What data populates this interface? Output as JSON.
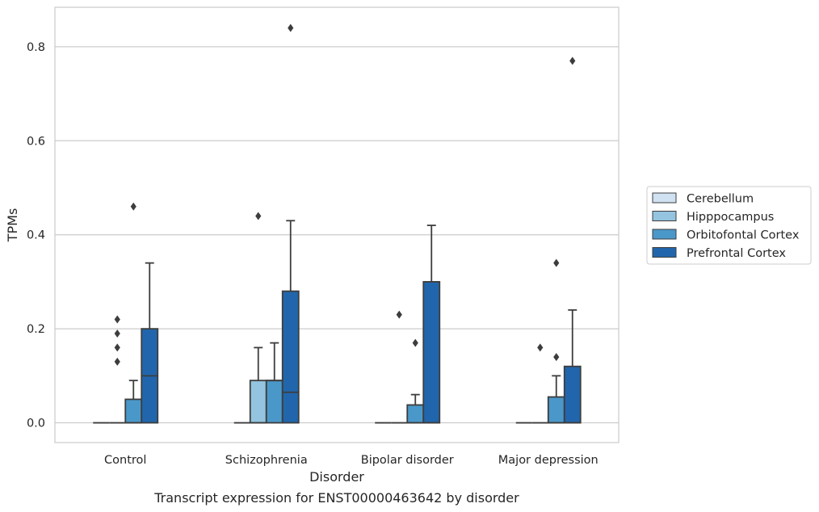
{
  "chart_data": {
    "type": "box",
    "title": "",
    "caption": "Transcript expression for ENST00000463642 by disorder",
    "xlabel": "Disorder",
    "ylabel": "TPMs",
    "categories": [
      "Control",
      "Schizophrenia",
      "Bipolar disorder",
      "Major depression"
    ],
    "y_ticks": [
      0.0,
      0.2,
      0.4,
      0.6,
      0.8
    ],
    "y_tick_labels": [
      "0.0",
      "0.2",
      "0.4",
      "0.6",
      "0.8"
    ],
    "ylim": [
      -0.042,
      0.884
    ],
    "grid": true,
    "legend_position": "right",
    "series": [
      {
        "name": "Cerebellum",
        "color": "#d0e1f2",
        "boxes": [
          {
            "q1": 0,
            "median": 0,
            "q3": 0,
            "whisker_low": 0,
            "whisker_high": 0,
            "outliers": []
          },
          {
            "q1": 0,
            "median": 0,
            "q3": 0,
            "whisker_low": 0,
            "whisker_high": 0,
            "outliers": []
          },
          {
            "q1": 0,
            "median": 0,
            "q3": 0,
            "whisker_low": 0,
            "whisker_high": 0,
            "outliers": []
          },
          {
            "q1": 0,
            "median": 0,
            "q3": 0,
            "whisker_low": 0,
            "whisker_high": 0,
            "outliers": []
          }
        ]
      },
      {
        "name": "Hipppocampus",
        "color": "#94c4df",
        "boxes": [
          {
            "q1": 0,
            "median": 0,
            "q3": 0,
            "whisker_low": 0,
            "whisker_high": 0,
            "outliers": [
              0.13
            ]
          },
          {
            "q1": 0,
            "median": 0,
            "q3": 0.09,
            "whisker_low": 0,
            "whisker_high": 0.16,
            "outliers": [
              0.44
            ]
          },
          {
            "q1": 0,
            "median": 0,
            "q3": 0,
            "whisker_low": 0,
            "whisker_high": 0,
            "outliers": [
              0.23
            ]
          },
          {
            "q1": 0,
            "median": 0,
            "q3": 0,
            "whisker_low": 0,
            "whisker_high": 0,
            "outliers": []
          }
        ]
      },
      {
        "name": "Orbitofontal Cortex",
        "color": "#4a98c9",
        "boxes": [
          {
            "q1": 0,
            "median": 0,
            "q3": 0.05,
            "whisker_low": 0,
            "whisker_high": 0.09,
            "outliers": [
              0.46
            ]
          },
          {
            "q1": 0,
            "median": 0.09,
            "q3": 0.09,
            "whisker_low": 0,
            "whisker_high": 0.17,
            "outliers": []
          },
          {
            "q1": 0,
            "median": 0,
            "q3": 0.038,
            "whisker_low": 0,
            "whisker_high": 0.06,
            "outliers": [
              0.17
            ]
          },
          {
            "q1": 0,
            "median": 0,
            "q3": 0.055,
            "whisker_low": 0,
            "whisker_high": 0.1,
            "outliers": [
              0.34,
              0.14
            ]
          }
        ]
      },
      {
        "name": "Prefrontal Cortex",
        "color": "#2166ac",
        "boxes": [
          {
            "q1": 0,
            "median": 0.1,
            "q3": 0.2,
            "whisker_low": 0,
            "whisker_high": 0.34,
            "outliers": []
          },
          {
            "q1": 0,
            "median": 0.065,
            "q3": 0.28,
            "whisker_low": 0,
            "whisker_high": 0.43,
            "outliers": [
              0.84
            ]
          },
          {
            "q1": 0,
            "median": 0,
            "q3": 0.3,
            "whisker_low": 0,
            "whisker_high": 0.42,
            "outliers": []
          },
          {
            "q1": 0,
            "median": 0,
            "q3": 0.12,
            "whisker_low": 0,
            "whisker_high": 0.24,
            "outliers": [
              0.77
            ]
          }
        ]
      }
    ],
    "extra_outliers": [
      {
        "category_index": 0,
        "series_index": 1,
        "values": [
          0.22,
          0.19,
          0.16
        ]
      },
      {
        "category_index": 3,
        "series_index": 1,
        "values": [
          0.16
        ]
      }
    ]
  }
}
